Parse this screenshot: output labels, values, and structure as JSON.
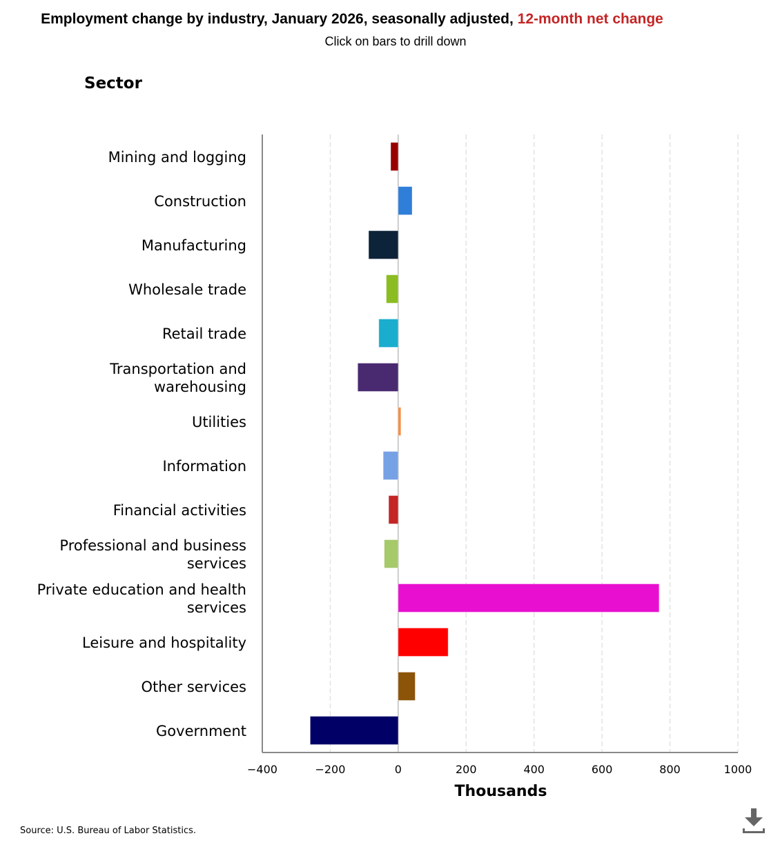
{
  "header": {
    "title_main": "Employment change by industry, January 2026, seasonally adjusted, ",
    "title_accent": "12-month net change",
    "subtitle": "Click on bars to drill down",
    "sector_heading": "Sector"
  },
  "footer": {
    "source": "Source: U.S. Bureau of Labor Statistics.",
    "download_icon": "download-icon"
  },
  "chart_data": {
    "type": "bar",
    "orientation": "horizontal",
    "title": "Employment change by industry, January 2026, seasonally adjusted, 12-month net change",
    "subtitle": "Click on bars to drill down",
    "xlabel": "Thousands",
    "ylabel": "Sector",
    "xlim": [
      -400,
      1000
    ],
    "xticks": [
      -400,
      -200,
      0,
      200,
      400,
      600,
      800,
      1000
    ],
    "xtick_labels": [
      "−400",
      "−200",
      "0",
      "200",
      "400",
      "600",
      "800",
      "1000"
    ],
    "grid": "vertical dashed",
    "legend": "none",
    "categories": [
      "Mining and logging",
      "Construction",
      "Manufacturing",
      "Wholesale trade",
      "Retail trade",
      "Transportation and warehousing",
      "Utilities",
      "Information",
      "Financial activities",
      "Professional and business services",
      "Private education and health services",
      "Leisure and hospitality",
      "Other services",
      "Government"
    ],
    "category_label_lines": [
      [
        "Mining and logging"
      ],
      [
        "Construction"
      ],
      [
        "Manufacturing"
      ],
      [
        "Wholesale trade"
      ],
      [
        "Retail trade"
      ],
      [
        "Transportation and",
        "warehousing"
      ],
      [
        "Utilities"
      ],
      [
        "Information"
      ],
      [
        "Financial activities"
      ],
      [
        "Professional and business",
        "services"
      ],
      [
        "Private education and health",
        "services"
      ],
      [
        "Leisure and hospitality"
      ],
      [
        "Other services"
      ],
      [
        "Government"
      ]
    ],
    "values": [
      -22,
      41,
      -87,
      -35,
      -57,
      -119,
      8,
      -44,
      -28,
      -41,
      768,
      147,
      50,
      -259
    ],
    "colors": [
      "#990000",
      "#2f7ed8",
      "#0d233a",
      "#8bbc21",
      "#1aadce",
      "#492970",
      "#f28f43",
      "#77a1e5",
      "#c42525",
      "#a6c96a",
      "#e90fd0",
      "#ff0000",
      "#8b5409",
      "#000066"
    ]
  }
}
